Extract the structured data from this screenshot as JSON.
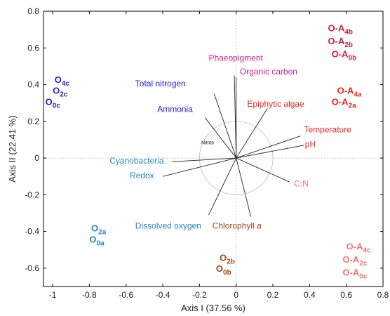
{
  "chart_data": {
    "type": "scatter",
    "title": "",
    "xlabel": "Axis I (37.56 %)",
    "ylabel": "Axis II (22.41 %)",
    "xlim": [
      -1.05,
      0.8
    ],
    "ylim": [
      -0.7,
      0.8
    ],
    "x_ticks": [
      -1,
      -0.8,
      -0.6,
      -0.4,
      -0.2,
      0,
      0.2,
      0.4,
      0.6,
      0.8
    ],
    "y_ticks": [
      -0.6,
      -0.4,
      -0.2,
      0,
      0.2,
      0.4,
      0.6,
      0.8
    ],
    "x_tick_labels": [
      "-1",
      "-0.8",
      "-0.6",
      "-0.4",
      "-0.2",
      "0",
      "0.2",
      "0.4",
      "0.6",
      "0.8"
    ],
    "y_tick_labels": [
      "-0.6",
      "-0.4",
      "-0.2",
      "0",
      "0.2",
      "0.4",
      "0.6",
      "0.8"
    ],
    "circle_radius": 0.2,
    "vectors": [
      {
        "label": "Phaeopigment",
        "x": -0.01,
        "y": 0.45,
        "label_x": -0.15,
        "label_y": 0.53,
        "color": "#cc1f8f",
        "size": 12
      },
      {
        "label": "Organic carbon",
        "x": 0.0,
        "y": 0.44,
        "label_x": 0.02,
        "label_y": 0.455,
        "color": "#cc1f8f",
        "size": 12
      },
      {
        "label": "Total nitrogen",
        "x": -0.12,
        "y": 0.35,
        "label_x": -0.55,
        "label_y": 0.39,
        "color": "#2222cc",
        "size": 12
      },
      {
        "label": "Ammonia",
        "x": -0.17,
        "y": 0.22,
        "label_x": -0.43,
        "label_y": 0.25,
        "color": "#2222cc",
        "size": 12
      },
      {
        "label": "Epiphytic algae",
        "x": 0.17,
        "y": 0.27,
        "label_x": 0.06,
        "label_y": 0.28,
        "color": "#e8261e",
        "size": 12
      },
      {
        "label": "Temperature",
        "x": 0.35,
        "y": 0.12,
        "label_x": 0.37,
        "label_y": 0.14,
        "color": "#e8261e",
        "size": 12
      },
      {
        "label": "pH",
        "x": 0.37,
        "y": 0.07,
        "label_x": 0.375,
        "label_y": 0.06,
        "color": "#e8261e",
        "size": 12
      },
      {
        "label": "C:N",
        "x": 0.29,
        "y": -0.13,
        "label_x": 0.315,
        "label_y": -0.155,
        "color": "#f07373",
        "size": 12
      },
      {
        "label": "Cyanobacteria",
        "x": -0.35,
        "y": -0.02,
        "label_x": -0.69,
        "label_y": -0.03,
        "color": "#2a82c4",
        "size": 12
      },
      {
        "label": "Redox",
        "x": -0.4,
        "y": -0.1,
        "label_x": -0.58,
        "label_y": -0.11,
        "color": "#2a82c4",
        "size": 12
      },
      {
        "label": "Dissolved oxygen",
        "x": -0.15,
        "y": -0.31,
        "label_x": -0.55,
        "label_y": -0.385,
        "color": "#2a82c4",
        "size": 12
      },
      {
        "label": "Chlorophyll a",
        "x": 0.08,
        "y": -0.32,
        "label_x": -0.13,
        "label_y": -0.385,
        "color": "#a0461e",
        "size": 12,
        "italic_suffix": "a"
      },
      {
        "label": "Nitrite",
        "x": 0.0,
        "y": 0.0,
        "label_x": -0.19,
        "label_y": 0.075,
        "color": "#111111",
        "size": 7,
        "line": false
      }
    ],
    "groups": [
      {
        "name": "O-A4b",
        "base": "O-A",
        "sub": "4b",
        "x": 0.5,
        "y": 0.69,
        "color": "#cc1f3a"
      },
      {
        "name": "O-A2b",
        "base": "O-A",
        "sub": "2b",
        "x": 0.5,
        "y": 0.62,
        "color": "#cc1f3a"
      },
      {
        "name": "O-A0b",
        "base": "O-A",
        "sub": "0b",
        "x": 0.52,
        "y": 0.55,
        "color": "#cc1f3a"
      },
      {
        "name": "O-A4a",
        "base": "O-A",
        "sub": "4a",
        "x": 0.55,
        "y": 0.35,
        "color": "#e8261e"
      },
      {
        "name": "O-A2a",
        "base": "O-A",
        "sub": "2a",
        "x": 0.52,
        "y": 0.29,
        "color": "#e8261e"
      },
      {
        "name": "O4c",
        "base": "O",
        "sub": "4c",
        "x": -0.99,
        "y": 0.41,
        "color": "#2222cc"
      },
      {
        "name": "O2c",
        "base": "O",
        "sub": "2c",
        "x": -1.0,
        "y": 0.35,
        "color": "#2222cc"
      },
      {
        "name": "O0c",
        "base": "O",
        "sub": "0c",
        "x": -1.04,
        "y": 0.29,
        "color": "#2222cc"
      },
      {
        "name": "O2a",
        "base": "O",
        "sub": "2a",
        "x": -0.79,
        "y": -0.4,
        "color": "#2a82c4"
      },
      {
        "name": "O0a",
        "base": "O",
        "sub": "0a",
        "x": -0.8,
        "y": -0.46,
        "color": "#2a82c4"
      },
      {
        "name": "O2b",
        "base": "O",
        "sub": "2b",
        "x": -0.09,
        "y": -0.56,
        "color": "#a0461e"
      },
      {
        "name": "O0b",
        "base": "O",
        "sub": "0b",
        "x": -0.11,
        "y": -0.62,
        "color": "#a0461e"
      },
      {
        "name": "O-A4c",
        "base": "O-A",
        "sub": "4c",
        "x": 0.6,
        "y": -0.5,
        "color": "#f07373"
      },
      {
        "name": "O-A2c",
        "base": "O-A",
        "sub": "2c",
        "x": 0.58,
        "y": -0.57,
        "color": "#f07373"
      },
      {
        "name": "O-A0c",
        "base": "O-A",
        "sub": "0c",
        "x": 0.58,
        "y": -0.64,
        "color": "#f07373"
      }
    ]
  }
}
